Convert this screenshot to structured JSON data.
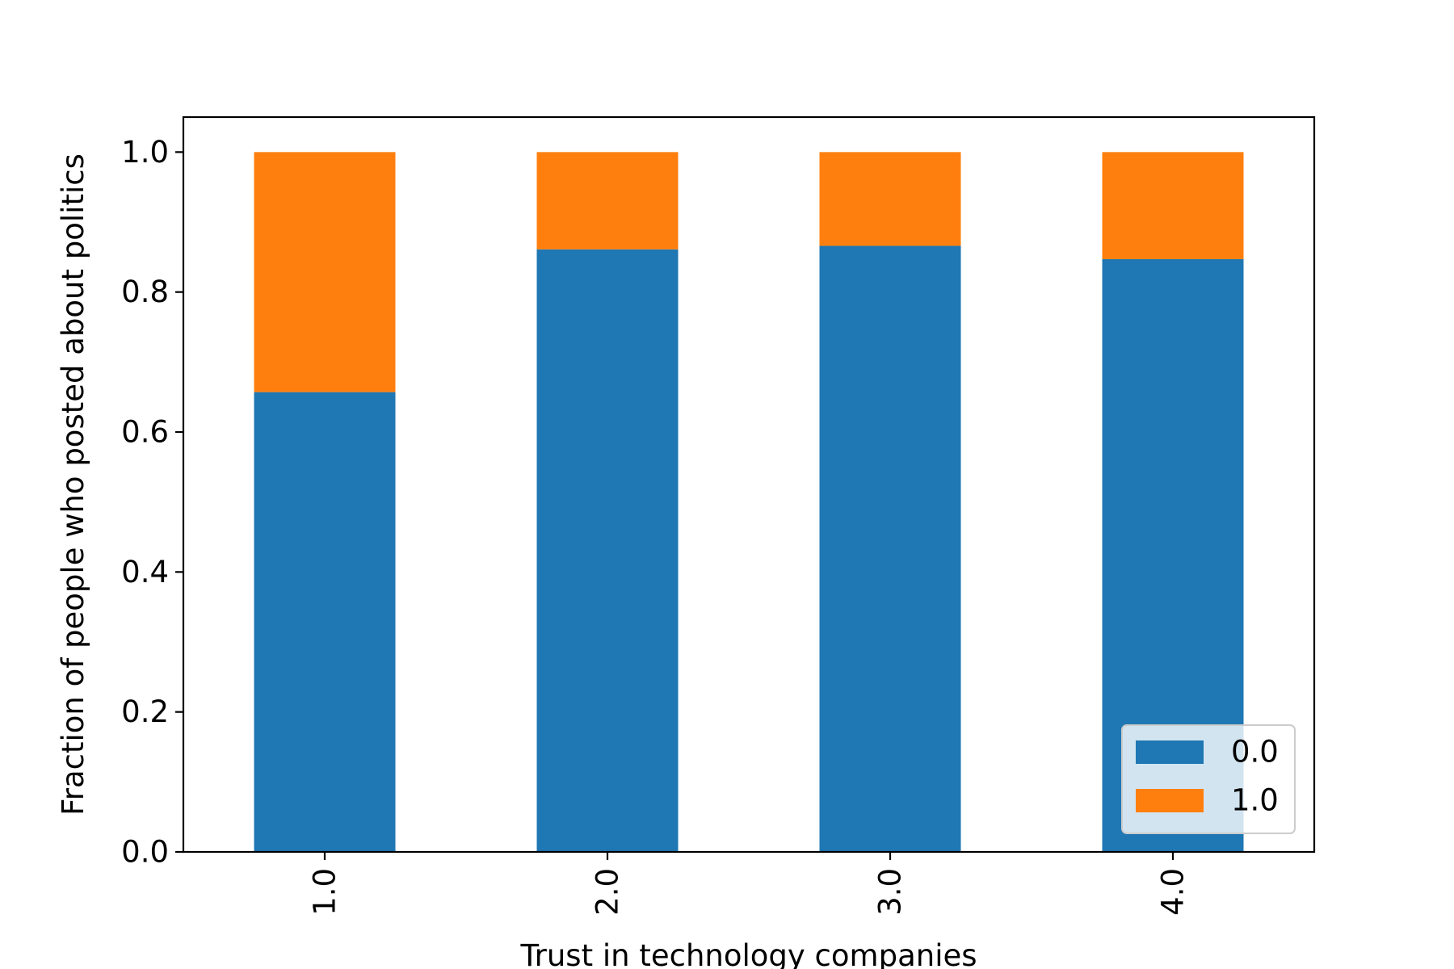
{
  "chart_data": {
    "type": "bar",
    "stacked": true,
    "categories": [
      "1.0",
      "2.0",
      "3.0",
      "4.0"
    ],
    "series": [
      {
        "name": "0.0",
        "color": "#1f77b4",
        "values": [
          0.657,
          0.861,
          0.866,
          0.847
        ]
      },
      {
        "name": "1.0",
        "color": "#ff7f0e",
        "values": [
          0.343,
          0.139,
          0.134,
          0.153
        ]
      }
    ],
    "xlabel": "Trust in technology companies",
    "ylabel": "Fraction of people who posted about politics",
    "ylim": [
      0,
      1.05
    ],
    "yticks": [
      0.0,
      0.2,
      0.4,
      0.6,
      0.8,
      1.0
    ],
    "ytick_labels": [
      "0.0",
      "0.2",
      "0.4",
      "0.6",
      "0.8",
      "1.0"
    ],
    "grid": false,
    "legend_position": "lower-right"
  }
}
